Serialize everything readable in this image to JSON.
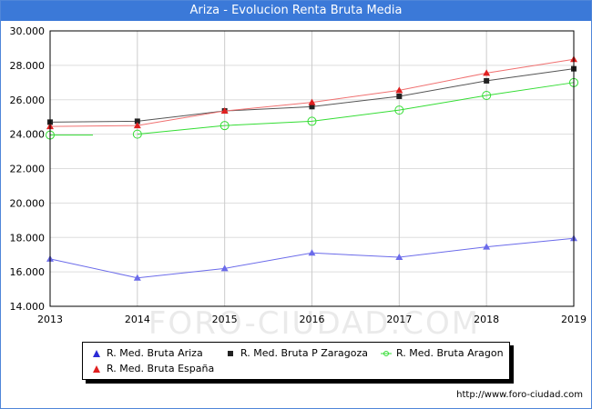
{
  "title": "Ariza - Evolucion Renta Bruta Media",
  "footer_url": "http://www.foro-ciudad.com",
  "watermark": "FORO-CIUDAD.COM",
  "chart_data": {
    "type": "line",
    "title": "Ariza - Evolucion Renta Bruta Media",
    "xlabel": "",
    "ylabel": "",
    "x": [
      2013,
      2014,
      2015,
      2016,
      2017,
      2018,
      2019
    ],
    "ylim": [
      14000,
      30000
    ],
    "yticks": [
      14000,
      16000,
      18000,
      20000,
      22000,
      24000,
      26000,
      28000,
      30000
    ],
    "ytick_labels": [
      "14.000",
      "16.000",
      "18.000",
      "20.000",
      "22.000",
      "24.000",
      "26.000",
      "28.000",
      "30.000"
    ],
    "grid": true,
    "legend_position": "bottom",
    "series": [
      {
        "name": "R. Med. Bruta Ariza",
        "color": "#6b6bea",
        "marker": "triangle-blue",
        "values": [
          16750,
          15650,
          16200,
          17100,
          16850,
          17450,
          17950
        ]
      },
      {
        "name": "R. Med. Bruta P Zaragoza",
        "color": "#555555",
        "marker": "square-black",
        "values": [
          24700,
          24750,
          25350,
          25600,
          26200,
          27100,
          27800
        ]
      },
      {
        "name": "R. Med. Bruta Aragon",
        "color": "#33dd33",
        "marker": "circle-green",
        "values": [
          23950,
          24000,
          24500,
          24750,
          25400,
          26250,
          27000
        ]
      },
      {
        "name": "R. Med. Bruta España",
        "color": "#f07070",
        "marker": "triangle-red",
        "values": [
          24450,
          24500,
          25350,
          25850,
          26550,
          27550,
          28350
        ]
      }
    ]
  }
}
